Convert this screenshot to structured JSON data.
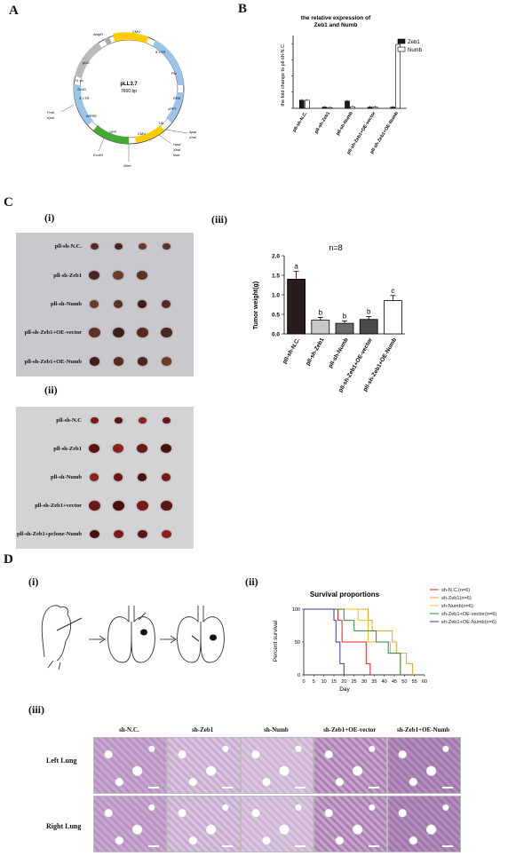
{
  "panels": {
    "A": "A",
    "B": "B",
    "C": "C",
    "D": "D",
    "ci": "(i)",
    "cii": "(ii)",
    "ciii": "(iii)",
    "di": "(i)",
    "dii": "(ii)",
    "diii": "(iii)"
  },
  "plasmid": {
    "name": "pLL3.7",
    "size": "7650 bp",
    "features": [
      "AmpR",
      "CMV",
      "5' LTR",
      "Psi",
      "RRE",
      "cPPT",
      "U6",
      "CMV",
      "GFP",
      "WPRE",
      "3' LTR",
      "SV40",
      "f1 ori",
      "pUC"
    ],
    "sites": [
      "PmlI",
      "KpnI",
      "EcoRI",
      "NheI",
      "ApaI",
      "XhoI",
      "HpaI",
      "XbaI",
      "NotI"
    ]
  },
  "photo_i": {
    "rows": [
      "pll-sh-N.C.",
      "pll-sh-Zeb1",
      "pll-sh-Numb",
      "pll-sh-Zeb1+OE-vector",
      "pll-sh-Zeb1+OE-Numb"
    ],
    "counts": [
      4,
      3,
      4,
      4,
      4
    ]
  },
  "photo_ii": {
    "rows": [
      "pll-sh-N.C",
      "pll-sh-Zeb1",
      "pll-sh-Numb",
      "pll-sh-Zeb1+vector",
      "pll-sh-Zeb1+pclone-Numb"
    ],
    "counts": [
      4,
      4,
      4,
      4,
      4
    ]
  },
  "histology": {
    "columns": [
      "sh-N.C.",
      "sh-Zeb1",
      "sh-Numb",
      "sh-Zeb1+OE-vector",
      "sh-Zeb1+OE-Numb"
    ],
    "rows": [
      "Left Lung",
      "Right Lung"
    ]
  },
  "colors": {
    "zeb1": "#1a1a1a",
    "numb": "#ffffff",
    "nc": "#e02020",
    "shzeb1": "#e8a020",
    "shnumb": "#e8c030",
    "oevec": "#2a8a3a",
    "oenumb": "#3a3aa0"
  },
  "chart_data": [
    {
      "type": "bar",
      "title": "the relative expression of Zeb1 and Numb",
      "ylabel": "the fold change to pll-sh-N.C.",
      "categories": [
        "pll-sh-N.C.",
        "pll-sh-Zeb1",
        "pll-sh-Numb",
        "pll-sh-Zeb1+OE-vector",
        "pll-sh-Zeb1+OE-Numb"
      ],
      "series": [
        {
          "name": "Zeb1",
          "values": [
            1.0,
            0.15,
            0.9,
            0.15,
            0.15
          ]
        },
        {
          "name": "Numb",
          "values": [
            1.0,
            0.1,
            0.2,
            0.15,
            7.9
          ]
        }
      ],
      "ylim": [
        0,
        9
      ],
      "legend": "top-right"
    },
    {
      "type": "bar",
      "title": "n=8",
      "ylabel": "Tumor weight(g)",
      "categories": [
        "pll-sh-N.C.",
        "pll-sh-Zeb1",
        "pll-sh-Numb",
        "pll-sh-Zeb1+OE-vector",
        "pll-sh-Zeb1+OE-Numb"
      ],
      "values": [
        1.4,
        0.35,
        0.27,
        0.37,
        0.85
      ],
      "letters": [
        "a",
        "b",
        "b",
        "b",
        "c"
      ],
      "yticks": [
        "0.0",
        "0.5",
        "1.0",
        "1.5",
        "2.0"
      ],
      "ylim": [
        0,
        2.0
      ]
    },
    {
      "type": "line",
      "title": "Survival proportions",
      "xlabel": "Day",
      "ylabel": "Percent survival",
      "xticks": [
        "0",
        "5",
        "10",
        "15",
        "20",
        "25",
        "30",
        "35",
        "40",
        "45",
        "50",
        "55",
        "60"
      ],
      "yticks": [
        "0",
        "50",
        "100"
      ],
      "xlim": [
        0,
        60
      ],
      "ylim": [
        0,
        100
      ],
      "legend": "right",
      "series": [
        {
          "name": "sh-N.C.(n=6)",
          "points": [
            [
              0,
              100
            ],
            [
              17,
              100
            ],
            [
              17,
              83
            ],
            [
              19,
              83
            ],
            [
              19,
              50
            ],
            [
              31,
              50
            ],
            [
              31,
              17
            ],
            [
              33,
              17
            ],
            [
              33,
              0
            ]
          ]
        },
        {
          "name": "sh-Zeb1(n=6)",
          "points": [
            [
              0,
              100
            ],
            [
              32,
              100
            ],
            [
              32,
              83
            ],
            [
              34,
              83
            ],
            [
              34,
              67
            ],
            [
              44,
              67
            ],
            [
              44,
              50
            ],
            [
              46,
              50
            ],
            [
              46,
              33
            ],
            [
              51,
              33
            ],
            [
              51,
              17
            ],
            [
              54,
              17
            ],
            [
              54,
              0
            ]
          ]
        },
        {
          "name": "sh-Numb(n=6)",
          "points": [
            [
              0,
              100
            ],
            [
              27,
              100
            ],
            [
              27,
              83
            ],
            [
              32,
              83
            ],
            [
              32,
              50
            ],
            [
              43,
              50
            ],
            [
              43,
              33
            ],
            [
              48,
              33
            ],
            [
              48,
              0
            ]
          ]
        },
        {
          "name": "sh-Zeb1+OE-vector(n=6)",
          "points": [
            [
              0,
              100
            ],
            [
              20,
              100
            ],
            [
              20,
              83
            ],
            [
              25,
              83
            ],
            [
              25,
              67
            ],
            [
              36,
              67
            ],
            [
              36,
              50
            ],
            [
              42,
              50
            ],
            [
              42,
              33
            ],
            [
              48,
              33
            ],
            [
              48,
              0
            ]
          ]
        },
        {
          "name": "sh-Zeb1+OE-Numb(n=6)",
          "points": [
            [
              0,
              100
            ],
            [
              15,
              100
            ],
            [
              15,
              83
            ],
            [
              16,
              83
            ],
            [
              16,
              50
            ],
            [
              18,
              50
            ],
            [
              18,
              17
            ],
            [
              20,
              17
            ],
            [
              20,
              0
            ]
          ]
        }
      ]
    }
  ]
}
